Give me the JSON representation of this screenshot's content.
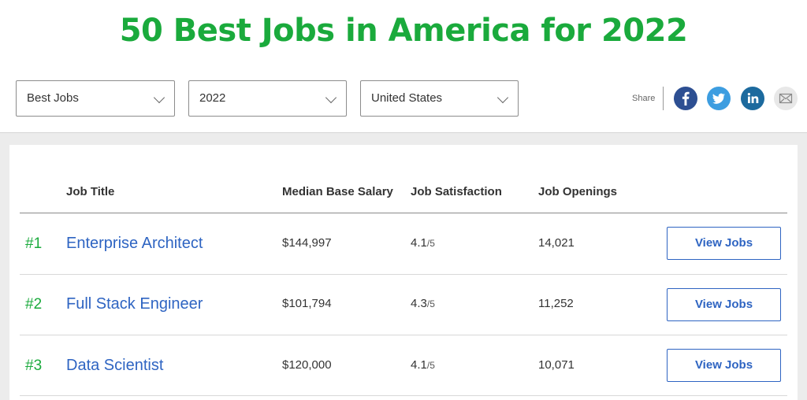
{
  "page_title": "50 Best Jobs in America for 2022",
  "filters": [
    {
      "value": "Best Jobs"
    },
    {
      "value": "2022"
    },
    {
      "value": "United States"
    }
  ],
  "share": {
    "label": "Share",
    "icons": [
      "facebook-icon",
      "twitter-icon",
      "linkedin-icon",
      "email-icon"
    ],
    "colors": {
      "facebook": "#2d4f92",
      "twitter": "#3d9de0",
      "linkedin": "#1c6a9e",
      "email": "#e8e8e8"
    }
  },
  "table": {
    "headers": [
      "Job Title",
      "Median Base Salary",
      "Job Satisfaction",
      "Job Openings"
    ],
    "rows": [
      {
        "rank": "#1",
        "title": "Enterprise Architect",
        "salary": "$144,997",
        "satisfaction": "4.1",
        "satisfaction_scale": "/5",
        "openings": "14,021",
        "button": "View Jobs"
      },
      {
        "rank": "#2",
        "title": "Full Stack Engineer",
        "salary": "$101,794",
        "satisfaction": "4.3",
        "satisfaction_scale": "/5",
        "openings": "11,252",
        "button": "View Jobs"
      },
      {
        "rank": "#3",
        "title": "Data Scientist",
        "salary": "$120,000",
        "satisfaction": "4.1",
        "satisfaction_scale": "/5",
        "openings": "10,071",
        "button": "View Jobs"
      }
    ]
  },
  "colors": {
    "accent_green": "#1aaa3c",
    "link_blue": "#2e64c2"
  }
}
